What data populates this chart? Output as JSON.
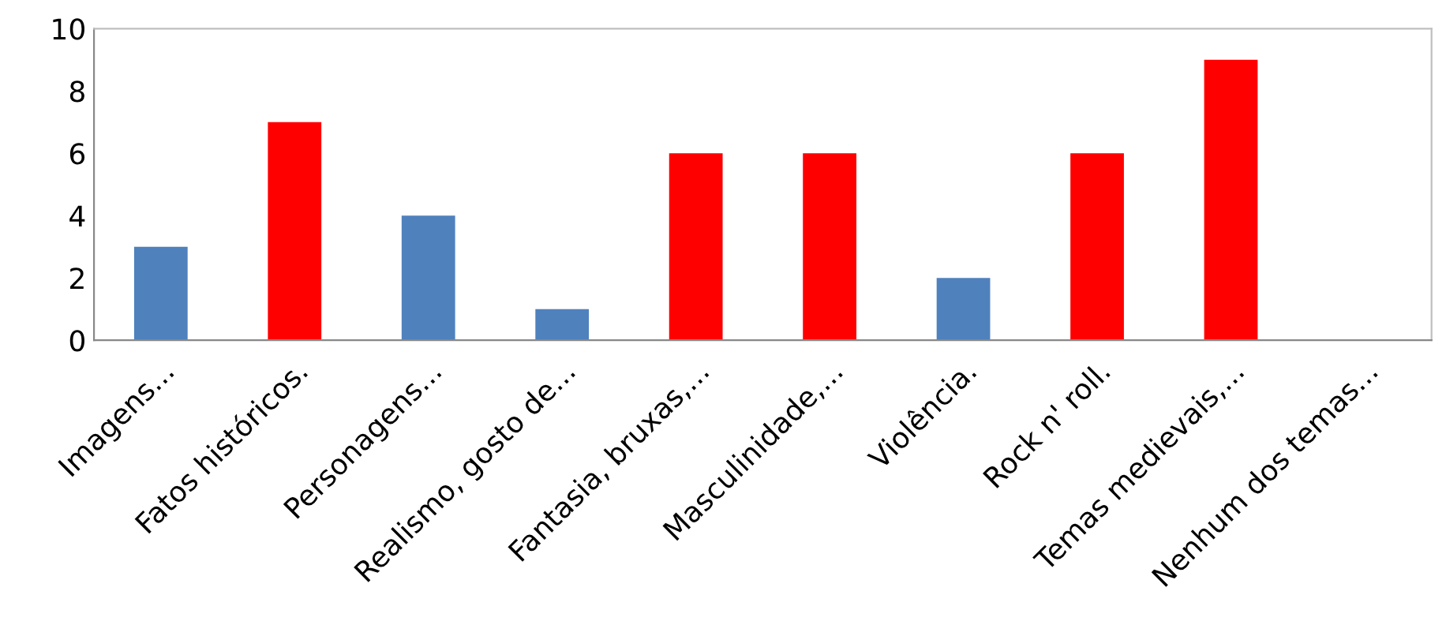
{
  "chart_data": {
    "type": "bar",
    "categories": [
      "Imagens...",
      "Fatos históricos.",
      "Personagens...",
      "Realismo, gosto de...",
      "Fantasia, bruxas,...",
      "Masculinidade,...",
      "Violência.",
      "Rock n' roll.",
      "Temas medievais,...",
      "Nenhum dos temas..."
    ],
    "values": [
      3,
      7,
      4,
      1,
      6,
      6,
      2,
      6,
      9,
      0
    ],
    "colors": [
      "#4f81bd",
      "#ff0000",
      "#4f81bd",
      "#4f81bd",
      "#ff0000",
      "#ff0000",
      "#4f81bd",
      "#ff0000",
      "#ff0000",
      "#ff0000"
    ],
    "ylim": [
      0,
      10
    ],
    "yticks": [
      0,
      2,
      4,
      6,
      8,
      10
    ],
    "grid": false,
    "legend": false
  }
}
